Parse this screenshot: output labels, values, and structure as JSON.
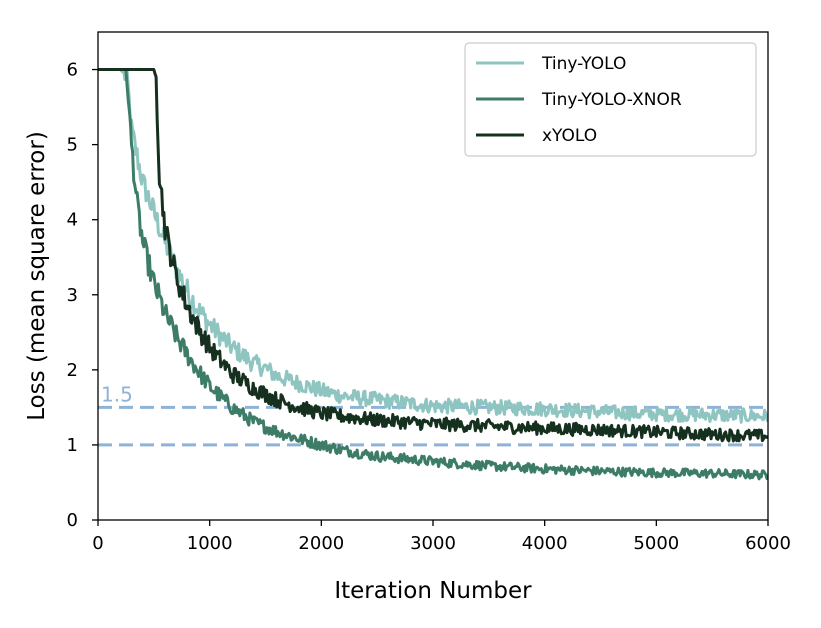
{
  "chart_data": {
    "type": "line",
    "xlabel": "Iteration Number",
    "ylabel": "Loss (mean square error)",
    "xlim": [
      0,
      6000
    ],
    "ylim": [
      0,
      6.5
    ],
    "xticks": [
      0,
      1000,
      2000,
      3000,
      4000,
      5000,
      6000
    ],
    "xtick_labels": [
      "0",
      "1000",
      "2000",
      "3000",
      "4000",
      "5000",
      "6000"
    ],
    "yticks": [
      0,
      1,
      2,
      3,
      4,
      5,
      6
    ],
    "ytick_labels": [
      "0",
      "1",
      "2",
      "3",
      "4",
      "5",
      "6"
    ],
    "grid": false,
    "legend_position": "top-right",
    "reference_lines": [
      {
        "y": 1.5,
        "label": "1.5",
        "style": "dashed",
        "color": "#8fb3d6"
      },
      {
        "y": 1.0,
        "label": "",
        "style": "dashed",
        "color": "#8fb3d6"
      }
    ],
    "series": [
      {
        "name": "Tiny-YOLO",
        "color": "#8fc5c0",
        "x": [
          0,
          200,
          260,
          300,
          400,
          500,
          600,
          700,
          800,
          900,
          1000,
          1200,
          1400,
          1500,
          1600,
          1800,
          2000,
          2200,
          2500,
          3000,
          3500,
          4000,
          4500,
          5000,
          5500,
          6000
        ],
        "y": [
          6.0,
          6.0,
          5.9,
          5.2,
          4.5,
          4.1,
          3.7,
          3.35,
          3.05,
          2.8,
          2.6,
          2.3,
          2.08,
          2.02,
          1.92,
          1.82,
          1.72,
          1.65,
          1.6,
          1.52,
          1.5,
          1.48,
          1.44,
          1.41,
          1.4,
          1.38
        ]
      },
      {
        "name": "Tiny-YOLO-XNOR",
        "color": "#3d7d68",
        "x": [
          0,
          250,
          300,
          350,
          400,
          500,
          600,
          700,
          800,
          900,
          1000,
          1200,
          1400,
          1600,
          1800,
          2000,
          2200,
          2500,
          3000,
          3500,
          4000,
          4500,
          5000,
          5500,
          6000
        ],
        "y": [
          6.0,
          6.0,
          5.0,
          4.2,
          3.7,
          3.15,
          2.75,
          2.45,
          2.2,
          1.98,
          1.78,
          1.5,
          1.3,
          1.18,
          1.08,
          1.0,
          0.93,
          0.85,
          0.78,
          0.72,
          0.68,
          0.65,
          0.63,
          0.62,
          0.6
        ]
      },
      {
        "name": "xYOLO",
        "color": "#16301f",
        "x": [
          0,
          500,
          520,
          550,
          600,
          650,
          700,
          800,
          900,
          1000,
          1100,
          1200,
          1400,
          1600,
          1800,
          2000,
          2200,
          2500,
          3000,
          3500,
          4000,
          4500,
          5000,
          5500,
          6000
        ],
        "y": [
          6.0,
          6.0,
          5.9,
          4.6,
          3.9,
          3.55,
          3.25,
          2.85,
          2.55,
          2.3,
          2.12,
          1.95,
          1.75,
          1.6,
          1.5,
          1.42,
          1.38,
          1.33,
          1.28,
          1.25,
          1.22,
          1.2,
          1.17,
          1.14,
          1.12
        ]
      }
    ]
  }
}
